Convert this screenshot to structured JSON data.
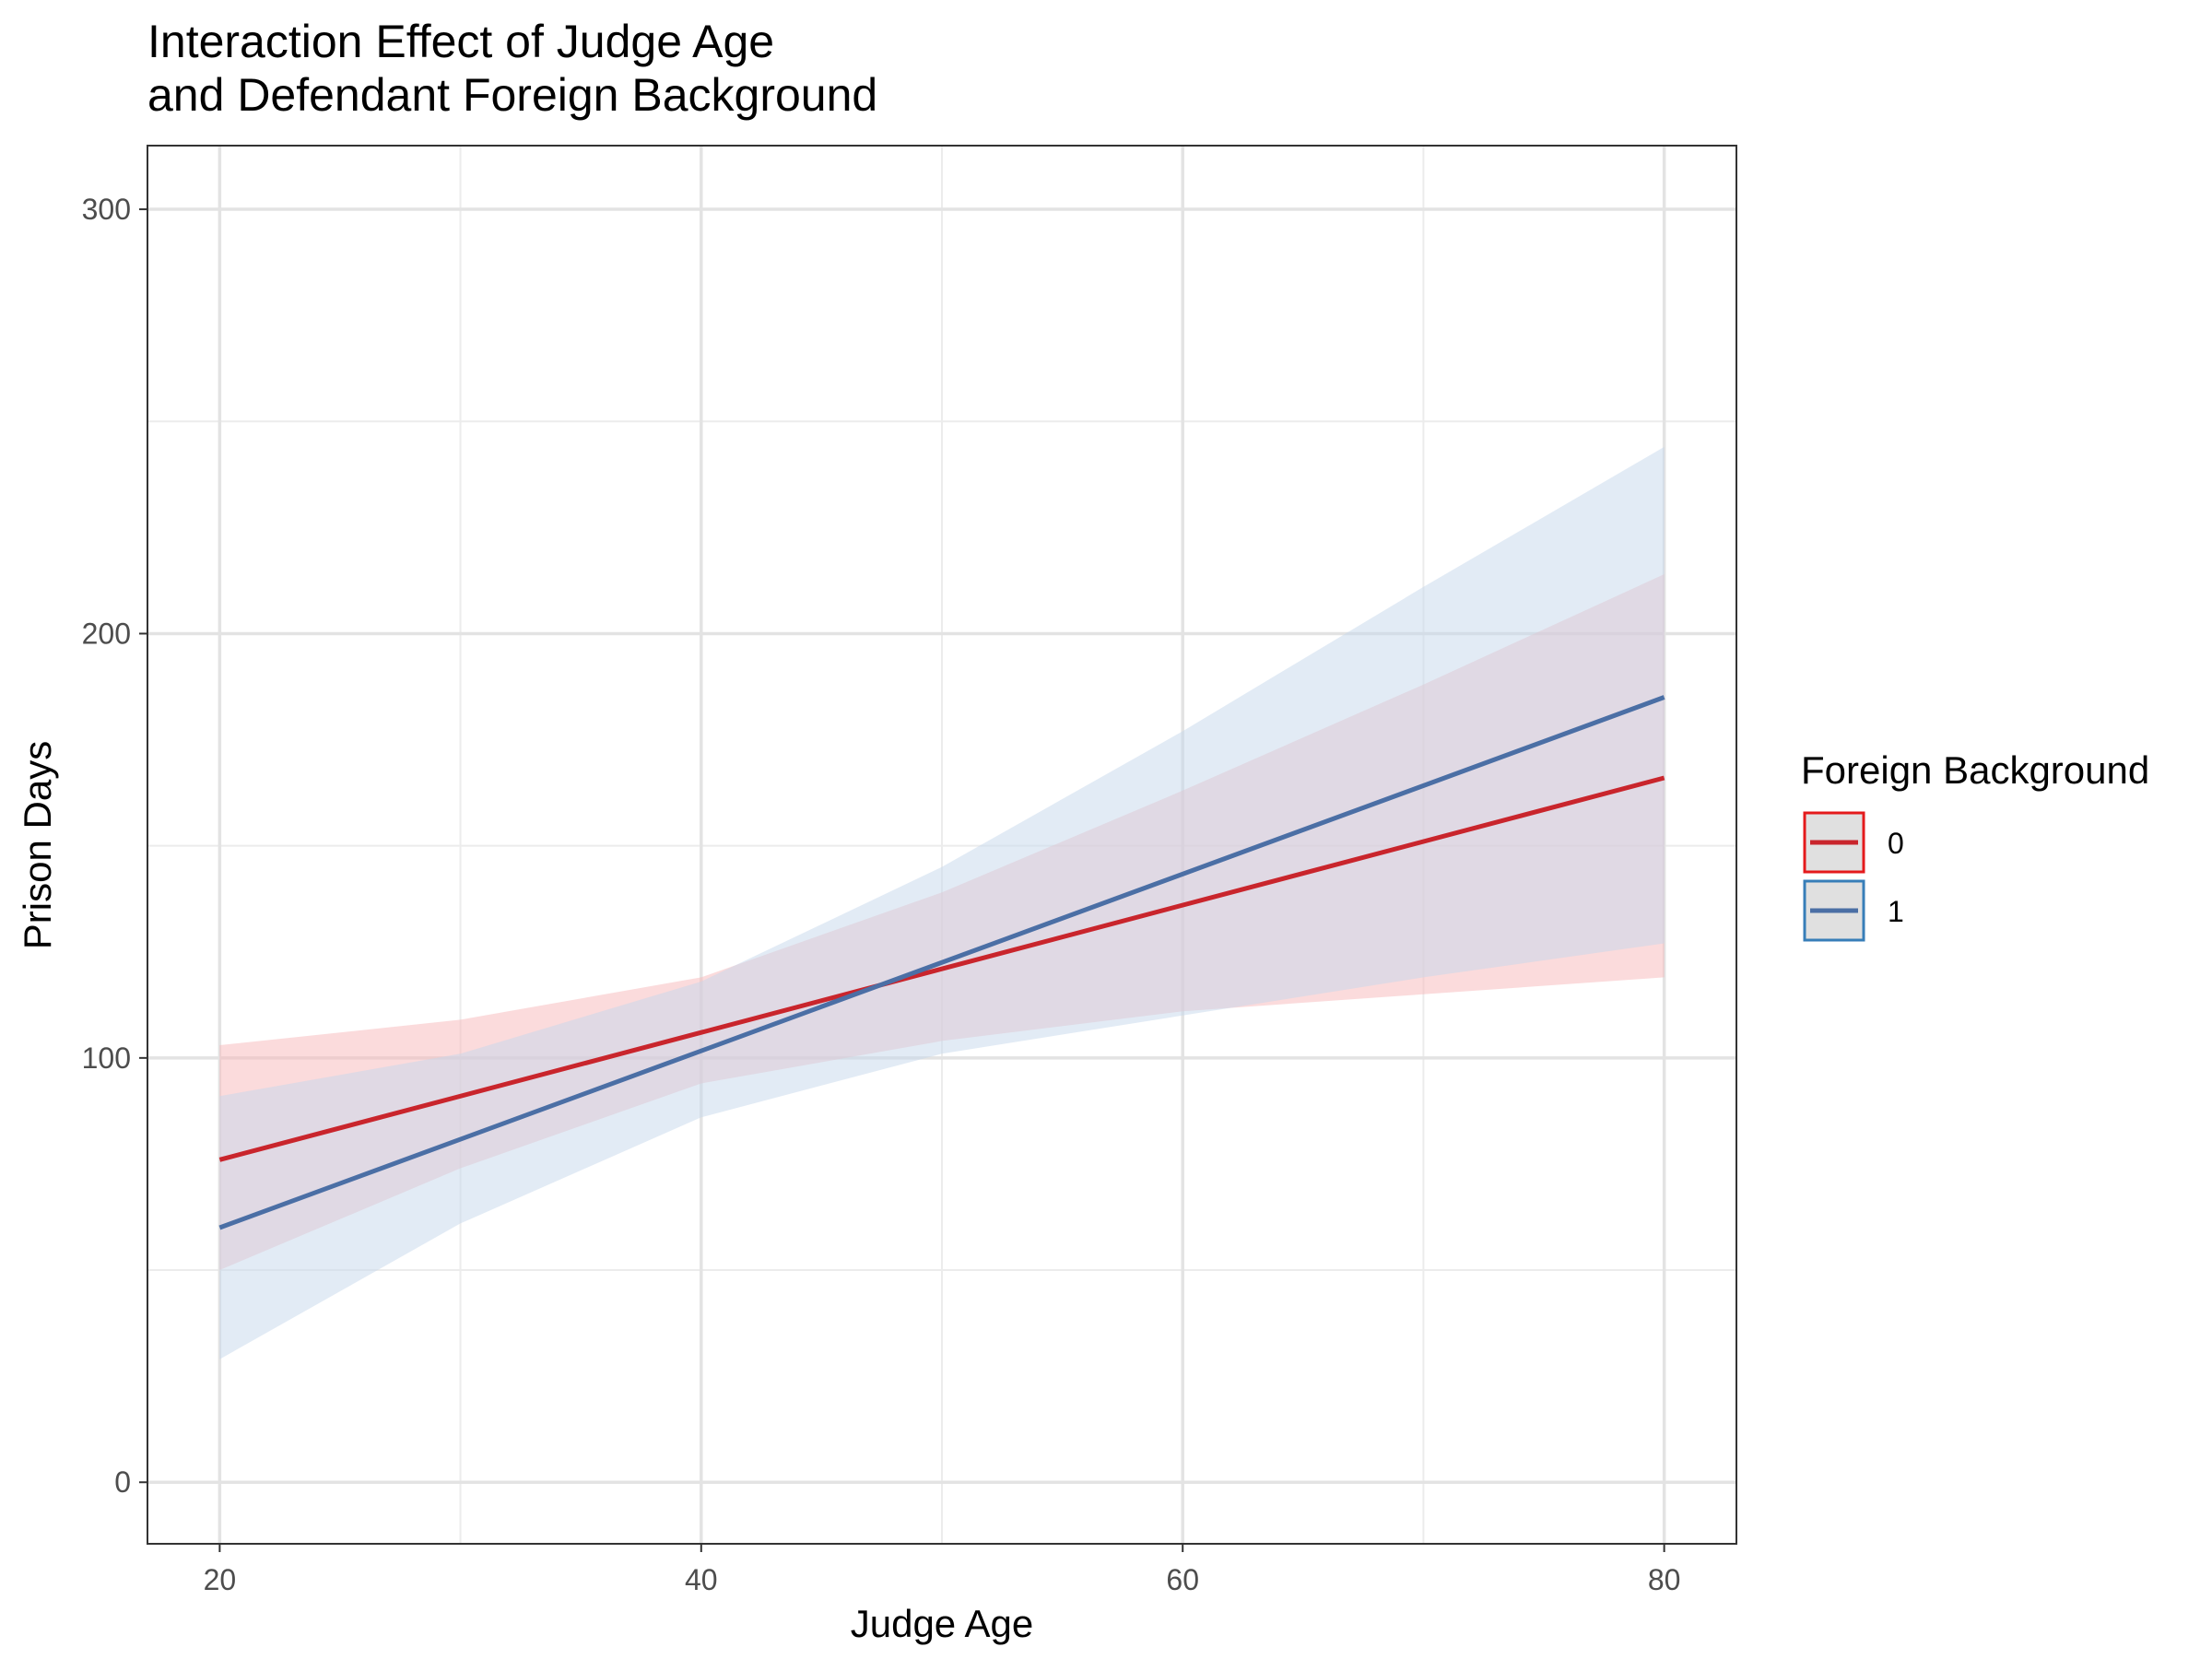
{
  "chart_data": {
    "type": "line",
    "title_lines": [
      "Interaction Effect of Judge Age",
      "and Defendant Foreign Background"
    ],
    "xlabel": "Judge Age",
    "ylabel": "Prison Days",
    "xlim": [
      17,
      83
    ],
    "ylim": [
      -14.5,
      315
    ],
    "x_ticks": [
      20,
      40,
      60,
      80
    ],
    "x_tick_labels": [
      "20",
      "40",
      "60",
      "80"
    ],
    "y_ticks": [
      0,
      100,
      200,
      300
    ],
    "y_tick_labels": [
      "0",
      "100",
      "200",
      "300"
    ],
    "x_minor_grid": [
      30,
      50,
      70
    ],
    "y_minor_grid": [
      50,
      150,
      250
    ],
    "grid": true,
    "legend": {
      "title": "Foreign Background",
      "position": "right",
      "entries": [
        "0",
        "1"
      ]
    },
    "x": [
      20,
      30,
      40,
      50,
      60,
      70,
      80
    ],
    "series": [
      {
        "name": "0",
        "color": "#C9252C",
        "ribbon_color": "#F8B7B9",
        "line_x": [
          20,
          80
        ],
        "line_y": [
          76,
          166
        ],
        "upper": [
          103,
          109,
          119,
          139,
          163,
          188,
          214
        ],
        "lower": [
          50,
          74,
          94,
          104,
          111,
          115,
          119
        ]
      },
      {
        "name": "1",
        "color": "#4B6FA5",
        "ribbon_color": "#C5D8EC",
        "line_x": [
          20,
          80
        ],
        "line_y": [
          60,
          185
        ],
        "upper": [
          91,
          101,
          118,
          145,
          177,
          211,
          244
        ],
        "lower": [
          29,
          61,
          86,
          101,
          110,
          119,
          127
        ]
      }
    ]
  }
}
